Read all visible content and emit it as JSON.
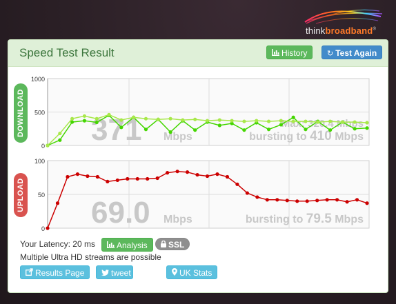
{
  "logo": {
    "text_think": "think",
    "text_broadband": "broadband",
    "mark": "®"
  },
  "panel": {
    "title": "Speed Test Result"
  },
  "buttons": {
    "history": {
      "label": "History",
      "icon": "bar-chart-icon"
    },
    "test_again": {
      "label": "Test Again",
      "icon": "refresh-icon"
    },
    "analysis": {
      "label": "Analysis",
      "icon": "bar-chart-icon"
    },
    "ssl": {
      "label": "SSL",
      "icon": "lock-icon"
    },
    "results_page": {
      "label": "Results Page",
      "icon": "external-link-icon"
    },
    "tweet": {
      "label": "tweet",
      "icon": "twitter-icon"
    },
    "uk_stats": {
      "label": "UK Stats",
      "icon": "map-marker-icon"
    }
  },
  "info": {
    "latency_label": "Your Latency: 20 ms",
    "streams": "Multiple Ultra HD streams are possible"
  },
  "colors": {
    "download": "#44d600",
    "download_light": "#a8e84a",
    "upload": "#cc0000",
    "panel_head": "#dff0d8",
    "button_green": "#5cb85c",
    "button_blue": "#428bca",
    "button_cyan": "#5bc0de"
  },
  "chart_data": [
    {
      "type": "line",
      "side_label": "DOWNLOAD",
      "yticks": [
        "1000",
        "500",
        "0"
      ],
      "ylim": [
        0,
        1000
      ],
      "grid": true,
      "speed_value": "371",
      "speed_unit": "Mbps",
      "overlay_line1": "Max: 320.4 Mbps",
      "burst_prefix": "bursting to",
      "burst_value": "410",
      "burst_unit": "Mbps",
      "series": [
        {
          "values": [
            0,
            80,
            350,
            370,
            345,
            450,
            270,
            420,
            240,
            390,
            200,
            370,
            230,
            350,
            300,
            330,
            230,
            340,
            240,
            310,
            420,
            240,
            360,
            230,
            350,
            250,
            260
          ]
        },
        {
          "values": [
            0,
            180,
            400,
            440,
            400,
            460,
            380,
            420,
            400,
            390,
            400,
            380,
            390,
            370,
            380,
            370,
            360,
            370,
            360,
            370,
            360,
            360,
            350,
            360,
            350,
            350,
            340
          ]
        }
      ]
    },
    {
      "type": "line",
      "side_label": "UPLOAD",
      "yticks": [
        "100",
        "50",
        "0"
      ],
      "ylim": [
        0,
        100
      ],
      "grid": true,
      "speed_value": "69.0",
      "speed_unit": "Mbps",
      "burst_prefix": "bursting to",
      "burst_value": "79.5",
      "burst_unit": "Mbps",
      "series": [
        {
          "values": [
            0,
            37,
            76,
            80,
            77,
            76,
            69,
            71,
            73,
            73,
            73,
            74,
            82,
            84,
            83,
            79,
            77,
            80,
            76,
            65,
            52,
            46,
            42,
            42,
            41,
            40,
            40,
            41,
            42,
            42,
            39,
            42,
            37
          ]
        }
      ]
    }
  ]
}
